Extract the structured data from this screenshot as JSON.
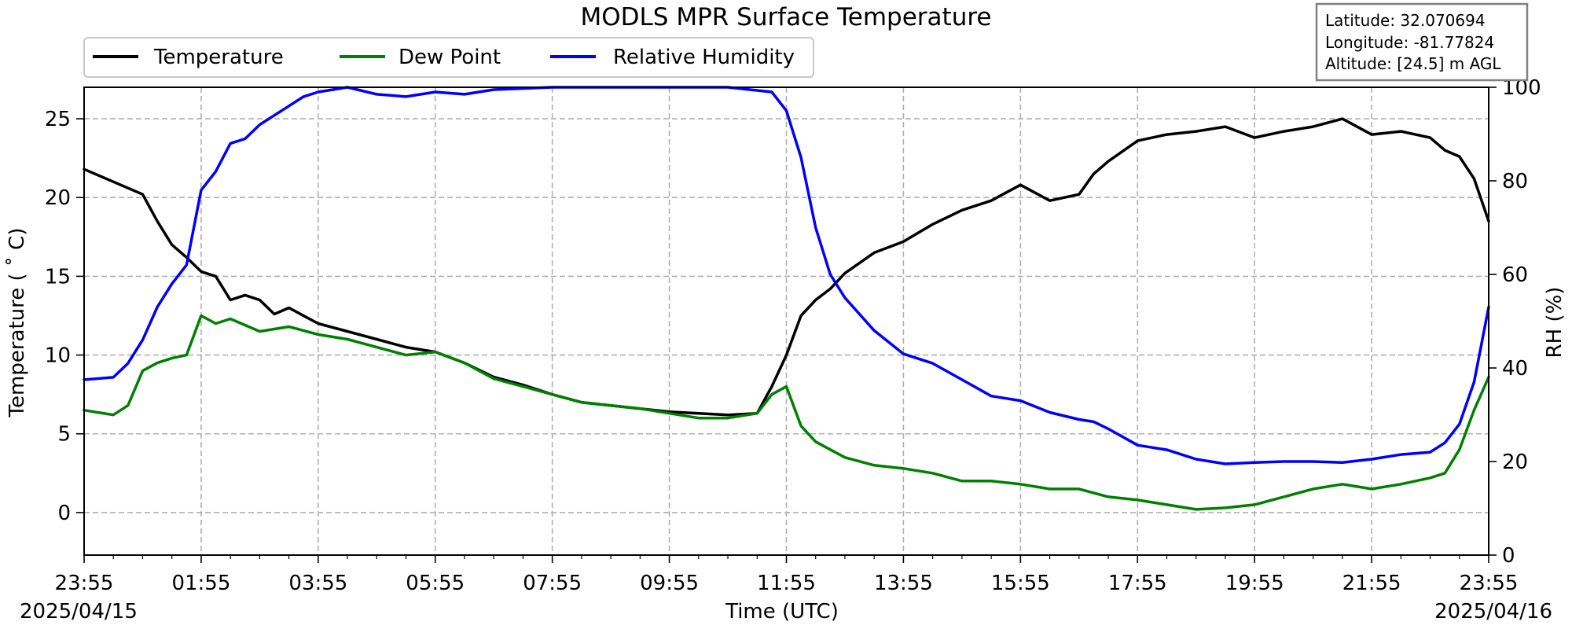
{
  "chart_data": {
    "type": "line",
    "title": "MODLS MPR Surface Temperature",
    "xlabel": "Time (UTC)",
    "ylabel": "Temperature ($^\\circ$C)",
    "ylabel_display": "Temperature ( ˚ C)",
    "y2label": "RH (%)",
    "ylim": [
      -2.7,
      27
    ],
    "y2lim": [
      0,
      100
    ],
    "yticks": [
      0,
      5,
      10,
      15,
      20,
      25
    ],
    "y2ticks": [
      0,
      20,
      40,
      60,
      80,
      100
    ],
    "xticks": [
      "23:55",
      "01:55",
      "03:55",
      "05:55",
      "07:55",
      "09:55",
      "11:55",
      "13:55",
      "15:55",
      "17:55",
      "19:55",
      "21:55",
      "23:55"
    ],
    "x_hours_since_start": [
      0,
      2,
      4,
      6,
      8,
      10,
      12,
      14,
      16,
      18,
      20,
      22,
      24
    ],
    "date_start": "2025/04/15",
    "date_end": "2025/04/16",
    "grid": true,
    "legend_position": "top-left",
    "info_box": [
      "Latitude: 32.070694",
      "Longitude: -81.77824",
      "Altitude: [24.5] m AGL"
    ],
    "series": [
      {
        "name": "Temperature",
        "color": "#000000",
        "axis": "left",
        "x": [
          0.0,
          0.5,
          1.0,
          1.25,
          1.5,
          1.75,
          2.0,
          2.25,
          2.5,
          2.75,
          3.0,
          3.25,
          3.5,
          4.0,
          4.5,
          5.0,
          5.5,
          6.0,
          6.5,
          7.0,
          7.5,
          8.0,
          8.5,
          9.0,
          9.5,
          10.0,
          10.5,
          11.0,
          11.5,
          11.75,
          12.0,
          12.25,
          12.5,
          12.75,
          13.0,
          13.5,
          14.0,
          14.5,
          15.0,
          15.5,
          16.0,
          16.5,
          17.0,
          17.25,
          17.5,
          18.0,
          18.5,
          19.0,
          19.5,
          20.0,
          20.5,
          21.0,
          21.5,
          22.0,
          22.5,
          23.0,
          23.25,
          23.5,
          23.75,
          24.0
        ],
        "y": [
          21.8,
          21.0,
          20.2,
          18.5,
          17.0,
          16.2,
          15.3,
          15.0,
          13.5,
          13.8,
          13.5,
          12.6,
          13.0,
          12.0,
          11.5,
          11.0,
          10.5,
          10.2,
          9.5,
          8.6,
          8.1,
          7.5,
          7.0,
          6.8,
          6.6,
          6.4,
          6.3,
          6.2,
          6.3,
          8.0,
          10.0,
          12.5,
          13.5,
          14.2,
          15.2,
          16.5,
          17.2,
          18.3,
          19.2,
          19.8,
          20.8,
          19.8,
          20.2,
          21.5,
          22.3,
          23.6,
          24.0,
          24.2,
          24.5,
          23.8,
          24.2,
          24.5,
          25.0,
          24.0,
          24.2,
          23.8,
          23.0,
          22.6,
          21.2,
          18.5
        ]
      },
      {
        "name": "Dew Point",
        "color": "#008000",
        "axis": "left",
        "x": [
          0.0,
          0.5,
          0.75,
          1.0,
          1.25,
          1.5,
          1.75,
          2.0,
          2.25,
          2.5,
          3.0,
          3.5,
          4.0,
          4.5,
          5.0,
          5.5,
          6.0,
          6.5,
          7.0,
          7.5,
          8.0,
          8.5,
          9.0,
          9.5,
          10.0,
          10.5,
          11.0,
          11.5,
          11.75,
          12.0,
          12.25,
          12.5,
          12.75,
          13.0,
          13.5,
          14.0,
          14.5,
          15.0,
          15.5,
          16.0,
          16.5,
          17.0,
          17.5,
          18.0,
          18.5,
          19.0,
          19.5,
          20.0,
          20.5,
          21.0,
          21.5,
          22.0,
          22.5,
          23.0,
          23.25,
          23.5,
          23.75,
          24.0
        ],
        "y": [
          6.5,
          6.2,
          6.8,
          9.0,
          9.5,
          9.8,
          10.0,
          12.5,
          12.0,
          12.3,
          11.5,
          11.8,
          11.3,
          11.0,
          10.5,
          10.0,
          10.2,
          9.5,
          8.5,
          8.0,
          7.5,
          7.0,
          6.8,
          6.6,
          6.3,
          6.0,
          6.0,
          6.3,
          7.5,
          8.0,
          5.5,
          4.5,
          4.0,
          3.5,
          3.0,
          2.8,
          2.5,
          2.0,
          2.0,
          1.8,
          1.5,
          1.5,
          1.0,
          0.8,
          0.5,
          0.2,
          0.3,
          0.5,
          1.0,
          1.5,
          1.8,
          1.5,
          1.8,
          2.2,
          2.5,
          4.0,
          6.5,
          8.6
        ]
      },
      {
        "name": "Relative Humidity",
        "color": "#0000ff",
        "axis": "right",
        "x": [
          0.0,
          0.5,
          0.75,
          1.0,
          1.25,
          1.5,
          1.75,
          2.0,
          2.25,
          2.5,
          2.75,
          3.0,
          3.25,
          3.5,
          3.75,
          4.0,
          4.5,
          5.0,
          5.5,
          6.0,
          6.5,
          7.0,
          8.0,
          9.0,
          10.0,
          11.0,
          11.75,
          12.0,
          12.25,
          12.5,
          12.75,
          13.0,
          13.5,
          14.0,
          14.5,
          15.0,
          15.5,
          16.0,
          16.5,
          17.0,
          17.25,
          17.5,
          18.0,
          18.5,
          19.0,
          19.5,
          20.0,
          20.5,
          21.0,
          21.5,
          22.0,
          22.5,
          23.0,
          23.25,
          23.5,
          23.75,
          24.0
        ],
        "y": [
          37.5,
          38.0,
          41.0,
          46.0,
          53.0,
          58.0,
          62.0,
          78.0,
          82.0,
          88.0,
          89.0,
          92.0,
          94.0,
          96.0,
          98.0,
          99.0,
          100.0,
          98.5,
          98.0,
          99.0,
          98.5,
          99.5,
          100.0,
          100.0,
          100.0,
          100.0,
          99.0,
          95.0,
          85.0,
          70.0,
          60.0,
          55.0,
          48.0,
          43.0,
          41.0,
          37.5,
          34.0,
          33.0,
          30.5,
          29.0,
          28.5,
          27.0,
          23.5,
          22.5,
          20.5,
          19.5,
          19.8,
          20.0,
          20.0,
          19.8,
          20.5,
          21.5,
          22.0,
          24.0,
          28.0,
          37.0,
          53.0
        ]
      }
    ]
  }
}
